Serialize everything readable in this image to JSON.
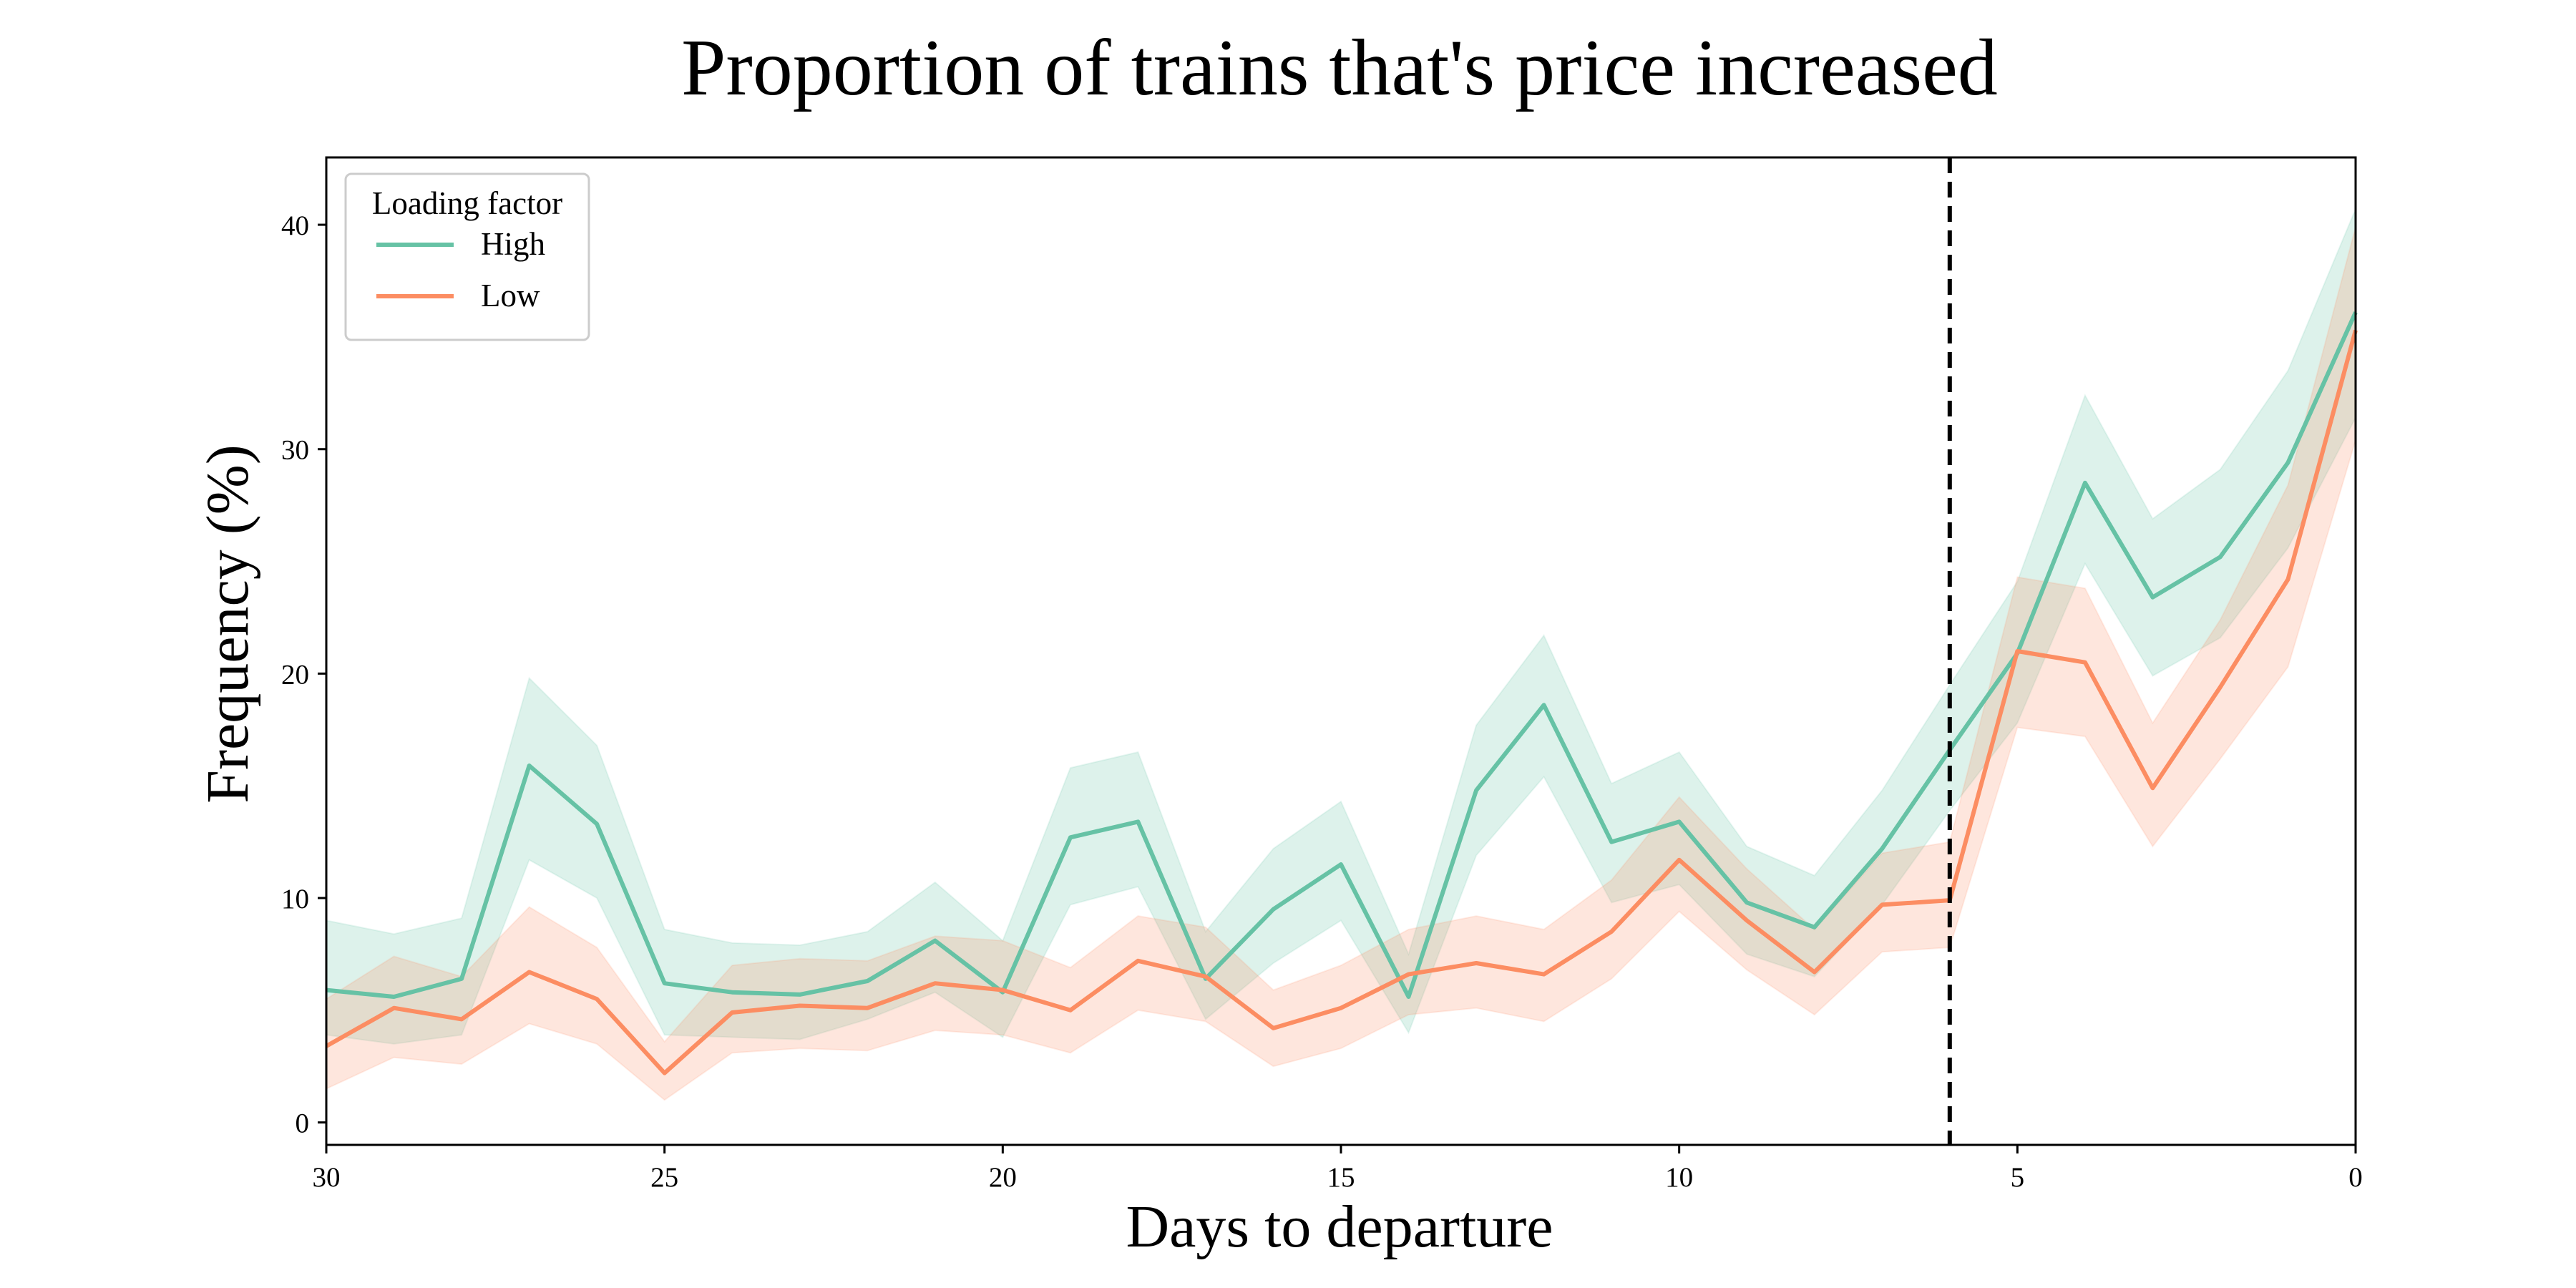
{
  "chart_data": {
    "type": "line",
    "title": "Proportion of trains that's price increased",
    "xlabel": "Days to departure",
    "ylabel": "Frequency (%)",
    "x_inverted": true,
    "xlim": [
      30,
      0
    ],
    "ylim": [
      -1,
      43
    ],
    "xticks": [
      30,
      25,
      20,
      15,
      10,
      5,
      0
    ],
    "yticks": [
      0,
      10,
      20,
      30,
      40
    ],
    "grid": false,
    "legend": {
      "title": "Loading factor",
      "placement": "top-left"
    },
    "vline": {
      "x": 6,
      "style": "dashed",
      "color": "#000000"
    },
    "x": [
      30,
      29,
      28,
      27,
      26,
      25,
      24,
      23,
      22,
      21,
      20,
      19,
      18,
      17,
      16,
      15,
      14,
      13,
      12,
      11,
      10,
      9,
      8,
      7,
      6,
      5,
      4,
      3,
      2,
      1,
      0
    ],
    "series": [
      {
        "name": "High",
        "color": "#66c2a5",
        "values": [
          5.9,
          5.6,
          6.4,
          15.9,
          13.3,
          6.2,
          5.8,
          5.7,
          6.3,
          8.1,
          5.8,
          12.7,
          13.4,
          6.4,
          9.5,
          11.5,
          5.6,
          14.8,
          18.6,
          12.5,
          13.4,
          9.8,
          8.7,
          12.2,
          16.6,
          20.9,
          28.5,
          23.4,
          25.2,
          29.4,
          36.1
        ],
        "lower": [
          3.9,
          3.5,
          3.9,
          11.7,
          10.0,
          3.9,
          3.8,
          3.7,
          4.6,
          5.8,
          3.8,
          9.7,
          10.5,
          4.6,
          7.1,
          9.0,
          4.0,
          11.9,
          15.4,
          9.8,
          10.6,
          7.5,
          6.5,
          9.7,
          13.9,
          17.8,
          24.9,
          19.9,
          21.6,
          25.6,
          31.4
        ],
        "upper": [
          9.0,
          8.4,
          9.1,
          19.8,
          16.8,
          8.6,
          8.0,
          7.9,
          8.5,
          10.7,
          8.1,
          15.8,
          16.5,
          8.5,
          12.2,
          14.3,
          7.5,
          17.7,
          21.7,
          15.1,
          16.5,
          12.3,
          11.0,
          14.8,
          19.5,
          24.1,
          32.4,
          26.9,
          29.1,
          33.5,
          40.7
        ]
      },
      {
        "name": "Low",
        "color": "#fc8d62",
        "values": [
          3.4,
          5.1,
          4.6,
          6.7,
          5.5,
          2.2,
          4.9,
          5.2,
          5.1,
          6.2,
          5.9,
          5.0,
          7.2,
          6.5,
          4.2,
          5.1,
          6.6,
          7.1,
          6.6,
          8.5,
          11.7,
          9.0,
          6.7,
          9.7,
          9.9,
          21.0,
          20.5,
          14.9,
          19.4,
          24.2,
          35.3
        ],
        "lower": [
          1.5,
          2.9,
          2.6,
          4.4,
          3.5,
          1.0,
          3.1,
          3.3,
          3.2,
          4.1,
          3.9,
          3.1,
          5.0,
          4.5,
          2.5,
          3.3,
          4.8,
          5.1,
          4.5,
          6.4,
          9.4,
          6.8,
          4.8,
          7.6,
          7.8,
          17.6,
          17.2,
          12.3,
          16.2,
          20.3,
          30.4
        ],
        "upper": [
          5.5,
          7.4,
          6.5,
          9.6,
          7.8,
          3.6,
          7.0,
          7.3,
          7.2,
          8.3,
          8.1,
          6.9,
          9.2,
          8.7,
          5.9,
          7.0,
          8.6,
          9.2,
          8.6,
          10.8,
          14.5,
          11.3,
          8.6,
          12.0,
          12.5,
          24.3,
          23.8,
          17.8,
          22.4,
          28.4,
          39.9
        ]
      }
    ]
  }
}
